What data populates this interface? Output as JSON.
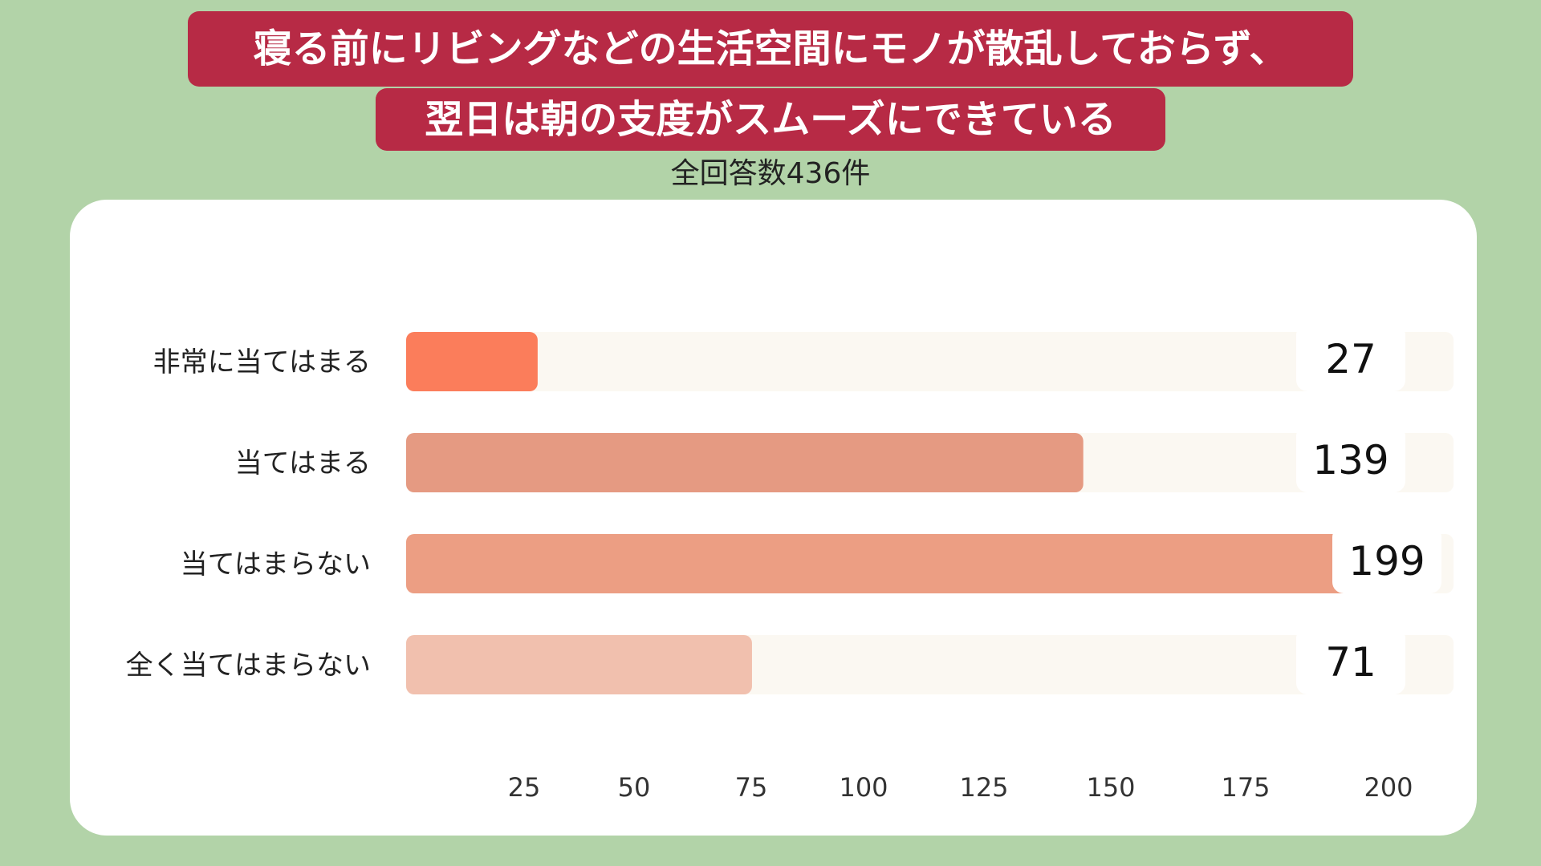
{
  "title_line1": "寝る前にリビングなどの生活空間にモノが散乱しておらず、",
  "title_line2": "翌日は朝の支度がスムーズにできている",
  "subtitle": "全回答数436件",
  "chart_data": {
    "type": "bar",
    "orientation": "horizontal",
    "categories": [
      "非常に当てはまる",
      "当てはまる",
      "当てはまらない",
      "全く当てはまらない"
    ],
    "values": [
      27,
      139,
      199,
      71
    ],
    "tick_labels": [
      "25",
      "50",
      "75",
      "100",
      "125",
      "150",
      "175",
      "200"
    ],
    "xlim": [
      0,
      215
    ],
    "colors": [
      "#fb7d5b",
      "#e59a82",
      "#ec9e83",
      "#f1c0ae"
    ],
    "track_color": "#fbf8f2"
  }
}
